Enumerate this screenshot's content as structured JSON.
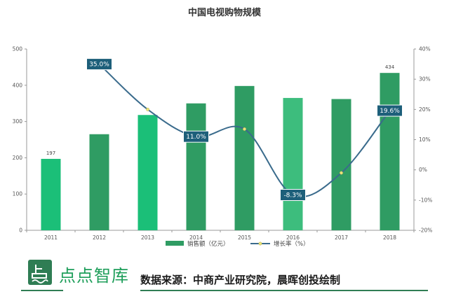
{
  "chart_data": {
    "type": "bar",
    "title": "中国电视购物规模",
    "categories": [
      "2011",
      "2012",
      "2013",
      "2014",
      "2015",
      "2016",
      "2017",
      "2018"
    ],
    "series": [
      {
        "name": "销售额（亿元）",
        "type": "bar",
        "axis": "left",
        "values": [
          197,
          265,
          318,
          350,
          398,
          365,
          362,
          434
        ],
        "colors": [
          "#1bbf78",
          "#2f9c63",
          "#1bbf78",
          "#2f9c63",
          "#2f9c63",
          "#3dbd7d",
          "#2f9c63",
          "#2f9c63"
        ],
        "data_labels": {
          "2011": "197",
          "2018": "434"
        }
      },
      {
        "name": "增长率（%）",
        "type": "line",
        "axis": "right",
        "values": [
          null,
          35.0,
          20.0,
          11.0,
          13.5,
          -8.3,
          -1.0,
          19.6
        ],
        "color": "#3a6b8c",
        "callouts": {
          "2012": "35.0%",
          "2014": "11.0%",
          "2016": "-8.3%",
          "2018": "19.6%"
        },
        "markers": [
          "2013",
          "2015",
          "2017"
        ]
      }
    ],
    "ylim": [
      0,
      500
    ],
    "y_ticks": [
      "0",
      "100",
      "200",
      "300",
      "400",
      "500"
    ],
    "y2lim": [
      -20,
      40
    ],
    "y2_ticks": [
      "-20%",
      "-10%",
      "0%",
      "10%",
      "20%",
      "30%",
      "40%"
    ],
    "grid": false,
    "legend_position": "bottom"
  },
  "footer": {
    "brand_name": "点点智库",
    "source": "数据来源：中商产业研究院，晨晖创投绘制"
  },
  "colors": {
    "brand": "#2f7d54",
    "line": "#3a6b8c",
    "callout": "#1d5f7a",
    "marker": "#e8e27a"
  }
}
